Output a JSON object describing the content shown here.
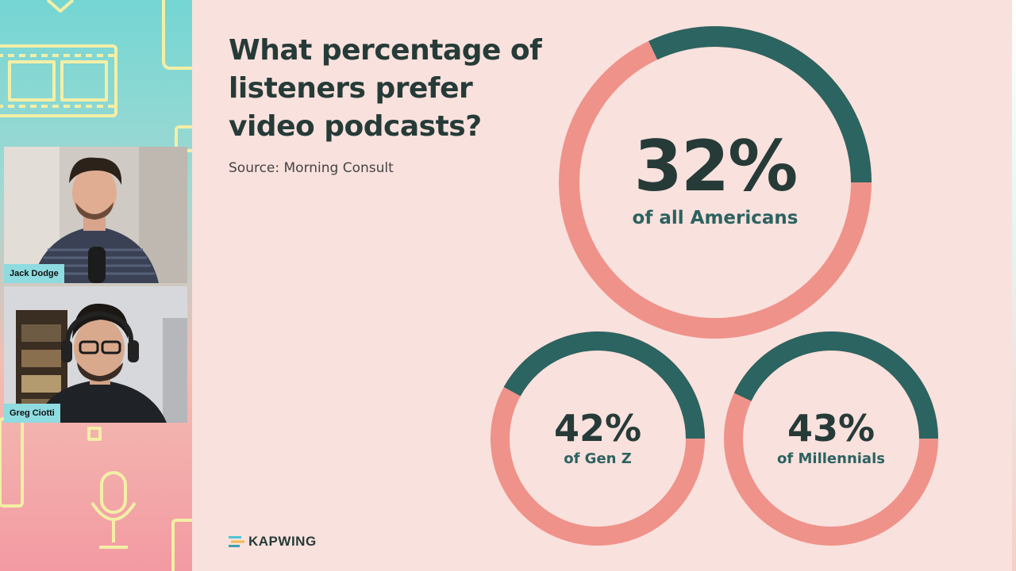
{
  "participants": [
    {
      "name": "Jack Dodge"
    },
    {
      "name": "Greg Ciotti"
    }
  ],
  "slide": {
    "title": "What percentage of listeners prefer video podcasts?",
    "source": "Source: Morning Consult",
    "logo": "KAPWING"
  },
  "chart_data": {
    "type": "pie",
    "subtype": "donut",
    "categories": [
      "of all Americans",
      "of Gen Z",
      "of Millennials"
    ],
    "values": [
      32,
      42,
      43
    ],
    "value_labels": [
      "32%",
      "42%",
      "43%"
    ],
    "unit": "%",
    "colors": {
      "filled": "#2b6460",
      "remainder": "#ef928a"
    }
  },
  "colors": {
    "slide_bg": "#f9e1dd",
    "dark_text": "#263b38",
    "teal": "#2b6460",
    "salmon": "#ef928a",
    "nametag": "#8edbe0"
  },
  "icons": [
    "film-strip-icon",
    "microphone-icon",
    "kapwing-logo-icon"
  ]
}
